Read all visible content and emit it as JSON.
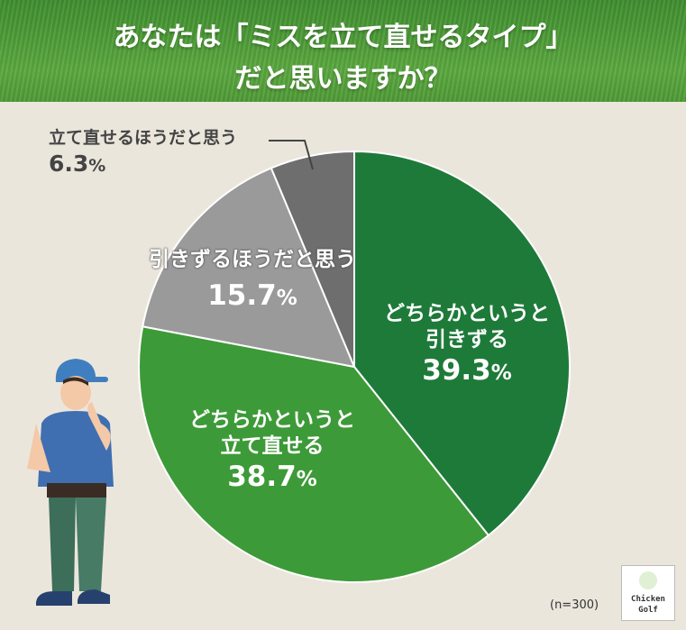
{
  "title": {
    "line1": "あなたは「ミスを立て直せるタイプ」",
    "line2": "だと思いますか？"
  },
  "chart_data": {
    "type": "pie",
    "title": "あなたは「ミスを立て直せるタイプ」だと思いますか？",
    "slices": [
      {
        "label": "どちらかというと引きずる",
        "label_lines": [
          "どちらかというと",
          "引きずる"
        ],
        "value": 39.3,
        "color": "#1e7a39"
      },
      {
        "label": "どちらかというと立て直せる",
        "label_lines": [
          "どちらかというと",
          "立て直せる"
        ],
        "value": 38.7,
        "color": "#3d9a38"
      },
      {
        "label": "引きずるほうだと思う",
        "label_lines": [
          "引きずるほうだと思う"
        ],
        "value": 15.7,
        "color": "#9a9a9a"
      },
      {
        "label": "立て直せるほうだと思う",
        "label_lines": [
          "立て直せるほうだと思う"
        ],
        "value": 6.3,
        "color": "#6e6e6e"
      }
    ],
    "unit": "%",
    "start_angle_deg": 0,
    "direction": "clockwise"
  },
  "labels": {
    "s0_line1": "どちらかというと",
    "s0_line2": "引きずる",
    "s0_num": "39.3",
    "s1_line1": "どちらかというと",
    "s1_line2": "立て直せる",
    "s1_num": "38.7",
    "s2_line1": "引きずるほうだと思う",
    "s2_num": "15.7",
    "s3_line1": "立て直せるほうだと思う",
    "s3_num": "6.3",
    "pct": "%"
  },
  "footer": {
    "sample": "(n=300)",
    "logo_line1": "Chicken",
    "logo_line2": "Golf"
  }
}
